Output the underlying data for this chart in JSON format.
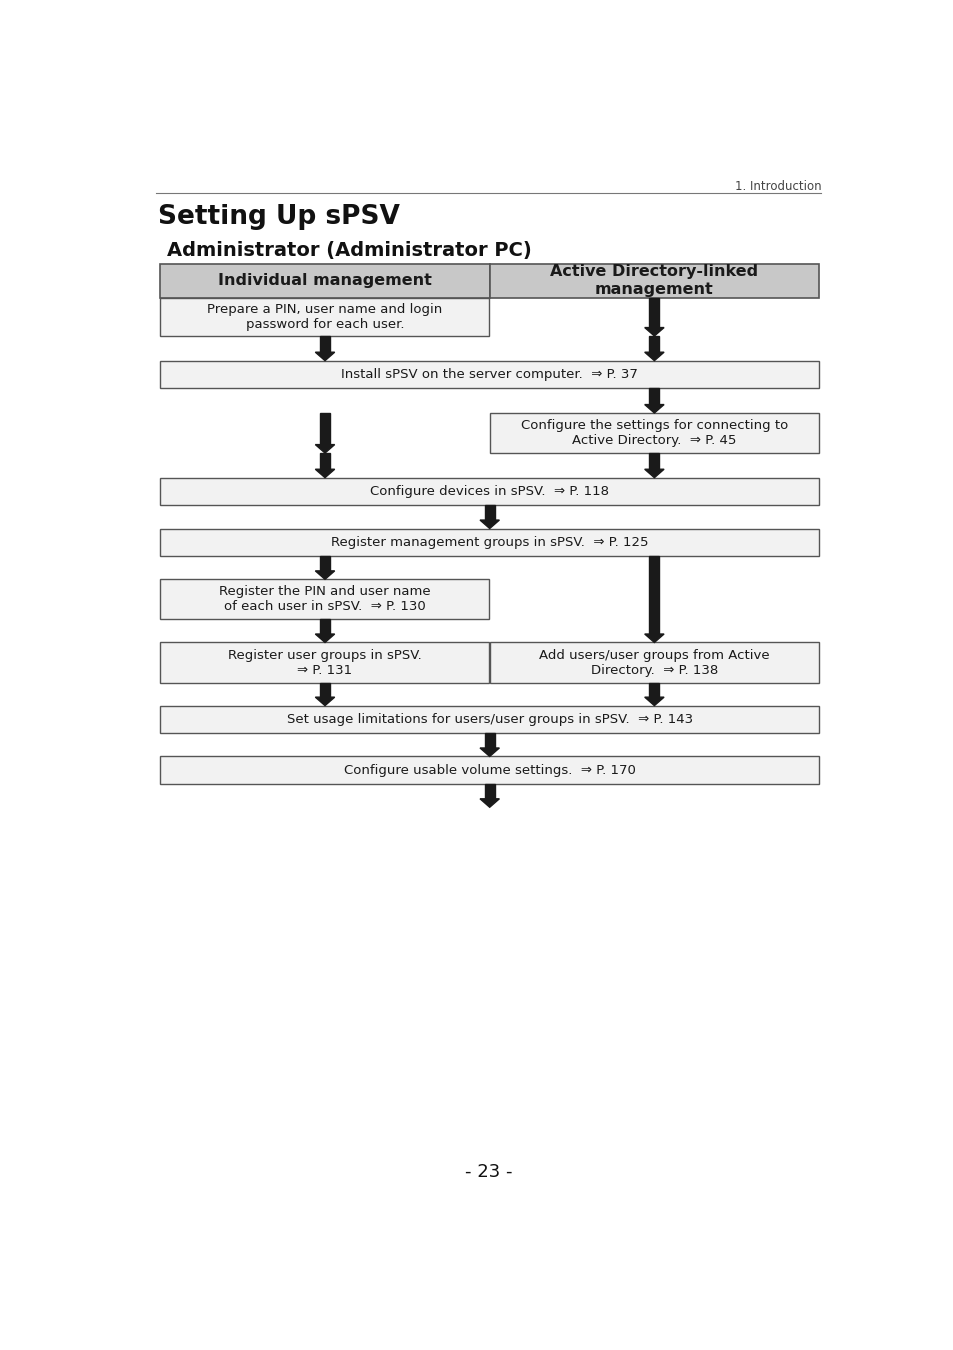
{
  "title": "Setting Up sPSV",
  "subtitle": "Administrator (Administrator PC)",
  "header_note": "1. Introduction",
  "page_number": "- 23 -",
  "bg_color": "#ffffff",
  "text_color": "#1a1a1a",
  "col1_header": "Individual management",
  "col2_header": "Active Directory-linked\nmanagement",
  "header_fill": "#c8c8c8",
  "box_fill": "#e8e8e8",
  "border_color": "#555555",
  "arrow_color": "#1a1a1a"
}
